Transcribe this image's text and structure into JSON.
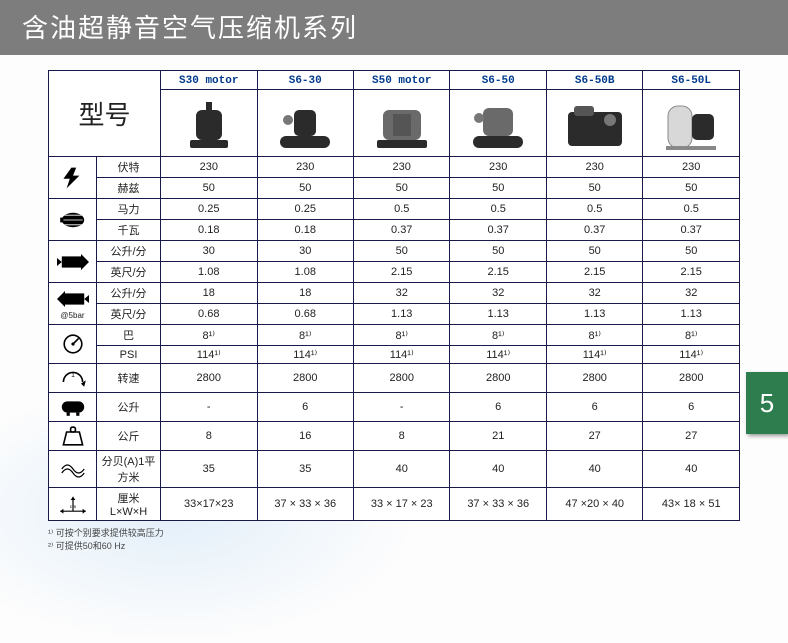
{
  "header": {
    "title": "含油超静音空气压缩机系列"
  },
  "table": {
    "corner_label": "型号",
    "models": [
      "S30 motor",
      "S6-30",
      "S50 motor",
      "S6-50",
      "S6-50B",
      "S6-50L"
    ],
    "groups": [
      {
        "icon": "bolt",
        "rows": [
          {
            "label": "伏特",
            "values": [
              "230",
              "230",
              "230",
              "230",
              "230",
              "230"
            ]
          },
          {
            "label": "赫兹",
            "values": [
              "50",
              "50",
              "50",
              "50",
              "50",
              "50"
            ]
          }
        ]
      },
      {
        "icon": "motor",
        "rows": [
          {
            "label": "马力",
            "values": [
              "0.25",
              "0.25",
              "0.5",
              "0.5",
              "0.5",
              "0.5"
            ]
          },
          {
            "label": "千瓦",
            "values": [
              "0.18",
              "0.18",
              "0.37",
              "0.37",
              "0.37",
              "0.37"
            ]
          }
        ]
      },
      {
        "icon": "intake",
        "rows": [
          {
            "label": "公升/分",
            "values": [
              "30",
              "30",
              "50",
              "50",
              "50",
              "50"
            ]
          },
          {
            "label": "英尺/分",
            "values": [
              "1.08",
              "1.08",
              "2.15",
              "2.15",
              "2.15",
              "2.15"
            ]
          }
        ]
      },
      {
        "icon": "output",
        "sub": "@5bar",
        "rows": [
          {
            "label": "公升/分",
            "values": [
              "18",
              "18",
              "32",
              "32",
              "32",
              "32"
            ]
          },
          {
            "label": "英尺/分",
            "values": [
              "0.68",
              "0.68",
              "1.13",
              "1.13",
              "1.13",
              "1.13"
            ]
          }
        ]
      },
      {
        "icon": "gauge",
        "rows": [
          {
            "label": "巴",
            "values": [
              "8¹⁾",
              "8¹⁾",
              "8¹⁾",
              "8¹⁾",
              "8¹⁾",
              "8¹⁾"
            ]
          },
          {
            "label": "PSI",
            "values": [
              "114¹⁾",
              "114¹⁾",
              "114¹⁾",
              "114¹⁾",
              "114¹⁾",
              "114¹⁾"
            ]
          }
        ]
      },
      {
        "icon": "rpm",
        "rows": [
          {
            "label": "转速",
            "values": [
              "2800",
              "2800",
              "2800",
              "2800",
              "2800",
              "2800"
            ]
          }
        ]
      },
      {
        "icon": "tank",
        "rows": [
          {
            "label": "公升",
            "values": [
              "-",
              "6",
              "-",
              "6",
              "6",
              "6"
            ]
          }
        ]
      },
      {
        "icon": "weight",
        "rows": [
          {
            "label": "公斤",
            "values": [
              "8",
              "16",
              "8",
              "21",
              "27",
              "27"
            ]
          }
        ]
      },
      {
        "icon": "noise",
        "rows": [
          {
            "label": "分贝(A)1平方米",
            "values": [
              "35",
              "35",
              "40",
              "40",
              "40",
              "40"
            ]
          }
        ]
      },
      {
        "icon": "dims",
        "rows": [
          {
            "label": "厘米 L×W×H",
            "values": [
              "33×17×23",
              "37 × 33 × 36",
              "33 × 17 × 23",
              "37 × 33 × 36",
              "47 ×20 × 40",
              "43× 18 × 51"
            ]
          }
        ]
      }
    ]
  },
  "footnotes": [
    "¹⁾ 可按个别要求提供较高压力",
    "²⁾ 可提供50和60 Hz"
  ],
  "page_number": "5",
  "colors": {
    "header_bg": "#7d7d7d",
    "badge_bg": "#2e7d4f",
    "border": "#1a1a4a",
    "model_text": "#003a8c"
  }
}
